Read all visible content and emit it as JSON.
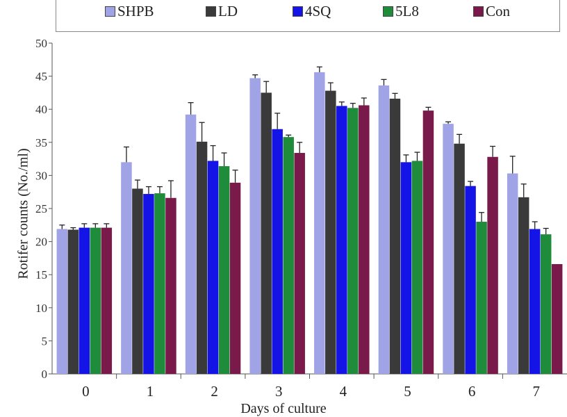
{
  "chart_data": {
    "type": "bar",
    "categories": [
      "0",
      "1",
      "2",
      "3",
      "4",
      "5",
      "6",
      "7"
    ],
    "xlabel": "Days of culture",
    "ylabel": "Rotifer counts (No./ml)",
    "ylim": [
      0,
      50
    ],
    "yticks": [
      "0",
      "5",
      "10",
      "15",
      "20",
      "25",
      "30",
      "35",
      "40",
      "45",
      "50"
    ],
    "legend_position": "top",
    "grid": false,
    "series": [
      {
        "name": "SHPB",
        "color": "#a0a4e6",
        "values": [
          21.9,
          32.0,
          39.2,
          44.7,
          45.6,
          43.6,
          37.8,
          30.3
        ],
        "errors": [
          0.6,
          2.3,
          1.8,
          0.5,
          0.8,
          0.9,
          0.3,
          2.6
        ]
      },
      {
        "name": "LD",
        "color": "#3a3a3a",
        "values": [
          21.8,
          28.0,
          35.1,
          42.5,
          42.8,
          41.6,
          34.8,
          26.7
        ],
        "errors": [
          0.3,
          1.3,
          2.9,
          1.7,
          1.2,
          0.8,
          1.4,
          2.0
        ]
      },
      {
        "name": "4SQ",
        "color": "#1414e6",
        "values": [
          22.1,
          27.2,
          32.2,
          37.0,
          40.5,
          32.0,
          28.4,
          21.9
        ],
        "errors": [
          0.6,
          1.1,
          2.3,
          2.4,
          0.6,
          1.1,
          0.7,
          1.1
        ]
      },
      {
        "name": "5L8",
        "color": "#1e8c3a",
        "values": [
          22.1,
          27.3,
          31.4,
          35.8,
          40.2,
          32.2,
          23.0,
          21.1
        ],
        "errors": [
          0.6,
          1.0,
          2.0,
          0.3,
          0.7,
          1.3,
          1.4,
          0.9
        ]
      },
      {
        "name": "Con",
        "color": "#7a1a4a",
        "values": [
          22.1,
          26.6,
          28.9,
          33.4,
          40.6,
          39.8,
          32.8,
          16.6
        ],
        "errors": [
          0.6,
          2.6,
          1.9,
          1.6,
          1.1,
          0.5,
          1.6,
          0.0
        ]
      }
    ]
  }
}
